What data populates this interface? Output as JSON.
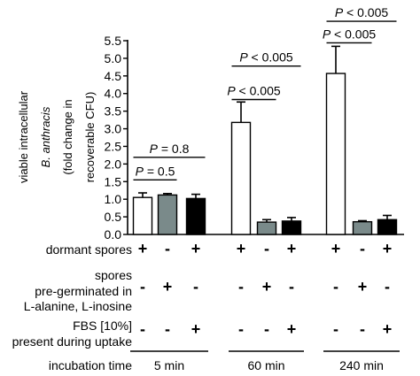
{
  "chart_data": {
    "type": "bar",
    "ylabel_lines": [
      {
        "parts": [
          {
            "text": "viable intracellular",
            "italic": false
          }
        ]
      },
      {
        "parts": [
          {
            "text": "B. anthracis",
            "italic": true
          }
        ]
      },
      {
        "parts": [
          {
            "text": "(fold change in",
            "italic": false
          }
        ]
      },
      {
        "parts": [
          {
            "text": "recoverable CFU)",
            "italic": false
          }
        ]
      }
    ],
    "ylim": [
      0,
      5.5
    ],
    "yticks": [
      "0.0",
      "0.5",
      "1.0",
      "1.5",
      "2.0",
      "2.5",
      "3.0",
      "3.5",
      "4.0",
      "4.5",
      "5.0",
      "5.5"
    ],
    "groups": [
      {
        "time": "5 min",
        "bars": [
          {
            "condition": "dormant spores",
            "value": 1.05,
            "error": 0.13,
            "fill": "#ffffff"
          },
          {
            "condition": "pre-germinated",
            "value": 1.12,
            "error": 0.04,
            "fill": "#7a8a8a"
          },
          {
            "condition": "dormant spores + FBS",
            "value": 1.02,
            "error": 0.12,
            "fill": "#000000"
          }
        ]
      },
      {
        "time": "60 min",
        "bars": [
          {
            "condition": "dormant spores",
            "value": 3.18,
            "error": 0.58,
            "fill": "#ffffff"
          },
          {
            "condition": "pre-germinated",
            "value": 0.35,
            "error": 0.07,
            "fill": "#7a8a8a"
          },
          {
            "condition": "dormant spores + FBS",
            "value": 0.38,
            "error": 0.1,
            "fill": "#000000"
          }
        ]
      },
      {
        "time": "240 min",
        "bars": [
          {
            "condition": "dormant spores",
            "value": 4.57,
            "error": 0.77,
            "fill": "#ffffff"
          },
          {
            "condition": "pre-germinated",
            "value": 0.36,
            "error": 0.03,
            "fill": "#7a8a8a"
          },
          {
            "condition": "dormant spores + FBS",
            "value": 0.42,
            "error": 0.12,
            "fill": "#000000"
          }
        ]
      }
    ],
    "annotations": [
      {
        "group": 0,
        "from": 0,
        "to": 1,
        "y": 1.55,
        "p_label": "P",
        "text": "= 0.5"
      },
      {
        "group": 0,
        "from": 0,
        "to": 2,
        "y": 2.19,
        "p_label": "P",
        "text": "= 0.8"
      },
      {
        "group": 1,
        "from": 0,
        "to": 1,
        "y": 3.83,
        "p_label": "P",
        "text": "< 0.005"
      },
      {
        "group": 1,
        "from": 0,
        "to": 2,
        "y": 4.78,
        "p_label": "P",
        "text": "< 0.005"
      },
      {
        "group": 2,
        "from": 0,
        "to": 1,
        "y": 5.44,
        "p_label": "P",
        "text": "< 0.005"
      },
      {
        "group": 2,
        "from": 0,
        "to": 2,
        "y": 6.05,
        "p_label": "P",
        "text": "< 0.005"
      }
    ],
    "conditions_table": [
      {
        "label_lines": [
          "dormant spores"
        ],
        "values": [
          "+",
          "-",
          "+",
          "+",
          "-",
          "+",
          "+",
          "-",
          "+"
        ]
      },
      {
        "label_lines": [
          "spores",
          "pre-germinated in",
          "L-alanine, L-inosine"
        ],
        "values": [
          "-",
          "+",
          "-",
          "-",
          "+",
          "-",
          "-",
          "+",
          "-"
        ]
      },
      {
        "label_lines": [
          "FBS [10%]",
          "present during uptake"
        ],
        "values": [
          "-",
          "-",
          "+",
          "-",
          "-",
          "+",
          "-",
          "-",
          "+"
        ]
      }
    ],
    "incubation_label": "incubation time",
    "grid": false,
    "legend": "none"
  }
}
